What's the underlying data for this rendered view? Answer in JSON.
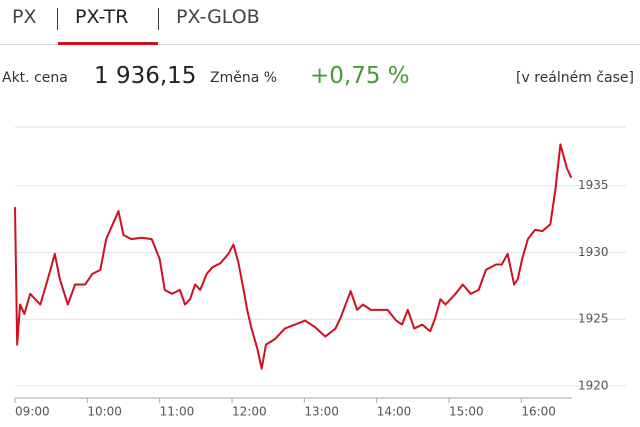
{
  "tabs": [
    "PX",
    "PX-TR",
    "PX-GLOB"
  ],
  "active_tab": 1,
  "quote": {
    "price_label": "Akt. cena",
    "price": "1 936,15",
    "change_label": "Změna %",
    "change": "+0,75 %",
    "realtime": "[v reálném čase]"
  },
  "chart_data": {
    "type": "line",
    "color": "#d0101e",
    "grid": true,
    "x": [
      9.0,
      9.03,
      9.07,
      9.13,
      9.21,
      9.28,
      9.35,
      9.41,
      9.49,
      9.55,
      9.62,
      9.73,
      9.83,
      9.97,
      10.07,
      10.18,
      10.26,
      10.35,
      10.43,
      10.5,
      10.61,
      10.75,
      10.89,
      11.0,
      11.07,
      11.17,
      11.28,
      11.35,
      11.42,
      11.49,
      11.56,
      11.65,
      11.73,
      11.84,
      11.95,
      12.02,
      12.09,
      12.16,
      12.21,
      12.27,
      12.35,
      12.41,
      12.47,
      12.59,
      12.73,
      12.87,
      13.01,
      13.15,
      13.29,
      13.43,
      13.5,
      13.57,
      13.64,
      13.73,
      13.81,
      13.92,
      14.05,
      14.15,
      14.27,
      14.35,
      14.43,
      14.52,
      14.63,
      14.74,
      14.81,
      14.88,
      14.95,
      15.09,
      15.19,
      15.3,
      15.41,
      15.51,
      15.65,
      15.73,
      15.81,
      15.9,
      15.95,
      16.01,
      16.09,
      16.19,
      16.29,
      16.4,
      16.47,
      16.54,
      16.63,
      16.69
    ],
    "values": [
      1933.4,
      1923.1,
      1926.1,
      1925.4,
      1926.9,
      1926.5,
      1926.1,
      1927.2,
      1928.7,
      1929.9,
      1928.0,
      1926.1,
      1927.6,
      1927.6,
      1928.4,
      1928.7,
      1931.0,
      1932.1,
      1933.1,
      1931.3,
      1931.0,
      1931.1,
      1931.0,
      1929.5,
      1927.2,
      1926.9,
      1927.2,
      1926.1,
      1926.5,
      1927.6,
      1927.2,
      1928.4,
      1928.9,
      1929.2,
      1929.9,
      1930.6,
      1929.2,
      1927.2,
      1925.7,
      1924.3,
      1922.8,
      1921.3,
      1923.1,
      1923.5,
      1924.3,
      1924.6,
      1924.9,
      1924.4,
      1923.7,
      1924.3,
      1925.1,
      1926.1,
      1927.1,
      1925.7,
      1926.1,
      1925.7,
      1925.7,
      1925.7,
      1924.9,
      1924.6,
      1925.7,
      1924.3,
      1924.6,
      1924.1,
      1925.1,
      1926.5,
      1926.1,
      1926.9,
      1927.6,
      1926.9,
      1927.2,
      1928.7,
      1929.1,
      1929.1,
      1929.9,
      1927.6,
      1928.0,
      1929.5,
      1931.0,
      1931.7,
      1931.6,
      1932.1,
      1934.7,
      1938.1,
      1936.3,
      1935.6
    ],
    "xlim": [
      9,
      16.7
    ],
    "xticks": [
      {
        "value": 9,
        "label": "09:00"
      },
      {
        "value": 10,
        "label": "10:00"
      },
      {
        "value": 11,
        "label": "11:00"
      },
      {
        "value": 12,
        "label": "12:00"
      },
      {
        "value": 13,
        "label": "13:00"
      },
      {
        "value": 14,
        "label": "14:00"
      },
      {
        "value": 15,
        "label": "15:00"
      },
      {
        "value": 16,
        "label": "16:00"
      }
    ],
    "ylim": [
      1919.1,
      1939.4
    ],
    "yticks": [
      1920,
      1925,
      1930,
      1935
    ]
  }
}
